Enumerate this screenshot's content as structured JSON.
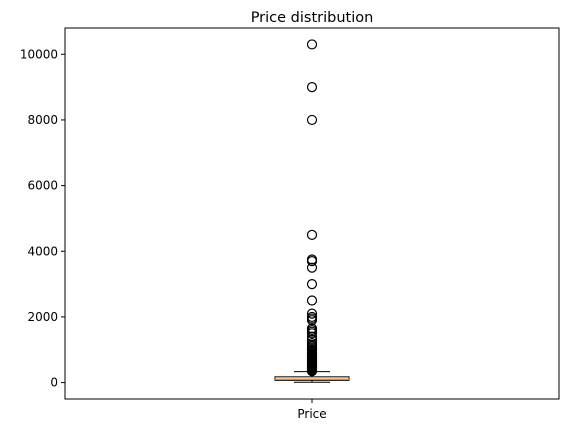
{
  "chart_data": {
    "type": "boxplot",
    "title": "Price distribution",
    "xlabel": "",
    "ylabel": "",
    "categories": [
      "Price"
    ],
    "ylim": [
      -500,
      10800
    ],
    "yticks": [
      0,
      2000,
      4000,
      6000,
      8000,
      10000
    ],
    "grid": false,
    "box": {
      "whisker_low": 10,
      "q1": 69,
      "median": 100,
      "q3": 175,
      "whisker_high": 334
    },
    "outliers": [
      10300,
      9000,
      8000,
      4500,
      3750,
      3700,
      3500,
      3000,
      2500,
      2100,
      2000,
      1950,
      1900,
      1650,
      1600,
      1550,
      1500,
      1400,
      1300,
      1200,
      1150,
      1100,
      1050,
      1000,
      980,
      950,
      900,
      870,
      850,
      820,
      800,
      780,
      750,
      720,
      700,
      680,
      650,
      620,
      600,
      580,
      550,
      520,
      500,
      480,
      460,
      440,
      420,
      400,
      380,
      360,
      350
    ],
    "colors": {
      "median": "#ff7f0e",
      "box": "#000000",
      "outlier_edge": "#000000"
    }
  }
}
